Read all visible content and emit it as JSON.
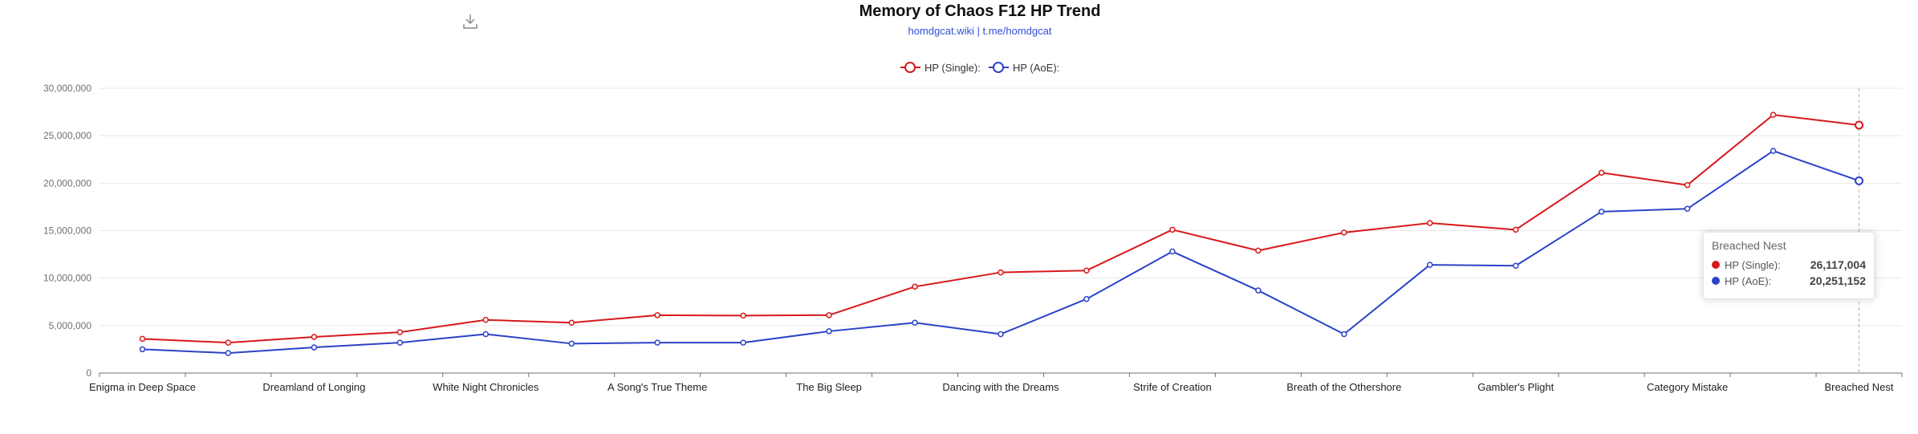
{
  "toolbar": {
    "download_icon": "download-icon"
  },
  "chart_data": {
    "type": "line",
    "title": "Memory of Chaos F12 HP Trend",
    "subtitle": "homdgcat.wiki | t.me/homdgcat",
    "categories": [
      "Enigma in Deep Space",
      "",
      "Dreamland of Longing",
      "",
      "White Night Chronicles",
      "",
      "A Song's True Theme",
      "",
      "The Big Sleep",
      "",
      "Dancing with the Dreams",
      "",
      "Strife of Creation",
      "",
      "Breath of the Othershore",
      "",
      "Gambler's Plight",
      "",
      "Category Mistake",
      "",
      "Breached Nest"
    ],
    "series": [
      {
        "name": "HP (Single):",
        "color": "#d7191c",
        "values": [
          3600000,
          3200000,
          3800000,
          4300000,
          5600000,
          5300000,
          6100000,
          6050000,
          6100000,
          9100000,
          10600000,
          10800000,
          15100000,
          12900000,
          14800000,
          15800000,
          15100000,
          21100000,
          19800000,
          27200000,
          26117004
        ]
      },
      {
        "name": "HP (AoE):",
        "color": "#2b43c8",
        "values": [
          2500000,
          2100000,
          2700000,
          3200000,
          4100000,
          3100000,
          3200000,
          3200000,
          4400000,
          5300000,
          4100000,
          7800000,
          12800000,
          8700000,
          4100000,
          11400000,
          11300000,
          17000000,
          17300000,
          23400000,
          20251152
        ]
      }
    ],
    "yticks": [
      "0",
      "5,000,000",
      "10,000,000",
      "15,000,000",
      "20,000,000",
      "25,000,000",
      "30,000,000"
    ],
    "ylim": [
      0,
      30000000
    ],
    "grid": true,
    "legend_position": "top-center"
  },
  "tooltip": {
    "title": "Breached Nest",
    "rows": [
      {
        "name": "HP (Single):",
        "value": "26,117,004",
        "color": "#d7191c"
      },
      {
        "name": "HP (AoE):",
        "value": "20,251,152",
        "color": "#2b43c8"
      }
    ]
  }
}
